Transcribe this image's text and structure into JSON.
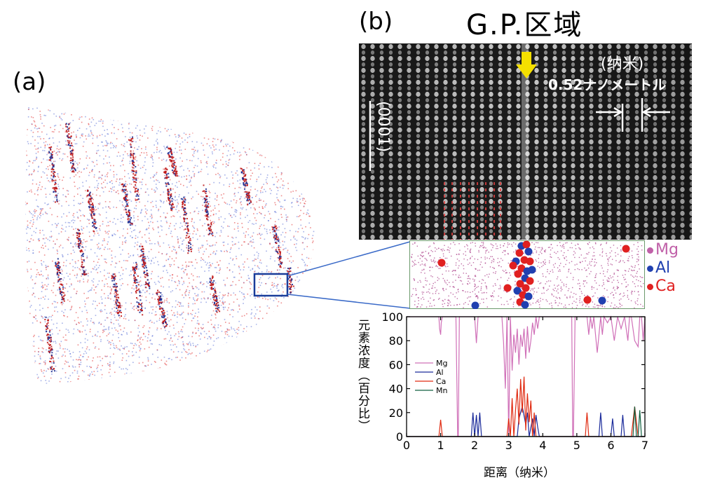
{
  "panel_a": {
    "label": "(a)"
  },
  "panel_b": {
    "label": "(b)",
    "tem": {
      "title": "G.P.区域",
      "unit_label": "(纳米)",
      "spacing_label": "0.52ナノメートル",
      "direction_label": "(0001)"
    },
    "atom_map_legend": [
      {
        "name": "Mg",
        "color": "#c060a8"
      },
      {
        "name": "Al",
        "color": "#2040b0"
      },
      {
        "name": "Ca",
        "color": "#e02020"
      }
    ]
  },
  "chart_data": {
    "type": "line",
    "xlabel": "距离（纳米）",
    "ylabel": "元素浓度（百分比）",
    "xlim": [
      0,
      7
    ],
    "ylim": [
      0,
      100
    ],
    "xticks": [
      "0",
      "1",
      "2",
      "3",
      "4",
      "5",
      "6",
      "7"
    ],
    "yticks": [
      "0",
      "20",
      "40",
      "60",
      "80",
      "100"
    ],
    "legend_position": "upper-left",
    "series": [
      {
        "name": "Mg",
        "color": "#d070b8",
        "x": [
          0.0,
          0.95,
          0.97,
          1.0,
          1.02,
          1.05,
          1.45,
          1.5,
          1.52,
          1.55,
          1.9,
          2.0,
          2.05,
          2.1,
          2.15,
          2.25,
          2.8,
          2.85,
          2.9,
          2.95,
          3.0,
          3.05,
          3.1,
          3.15,
          3.2,
          3.25,
          3.3,
          3.35,
          3.4,
          3.45,
          3.5,
          3.55,
          3.6,
          3.65,
          3.7,
          3.75,
          3.8,
          3.85,
          3.9,
          4.0,
          4.85,
          4.88,
          4.9,
          4.95,
          5.0,
          5.3,
          5.35,
          5.4,
          5.45,
          5.5,
          5.6,
          5.7,
          5.75,
          5.8,
          5.9,
          6.0,
          6.1,
          6.2,
          6.3,
          6.4,
          6.5,
          6.55,
          6.6,
          6.7,
          6.8,
          6.85,
          6.9,
          6.95,
          7.0
        ],
        "y": [
          100,
          100,
          90,
          85,
          95,
          100,
          100,
          0,
          0,
          100,
          100,
          100,
          78,
          100,
          100,
          100,
          100,
          78,
          40,
          100,
          0,
          100,
          55,
          85,
          70,
          90,
          60,
          85,
          75,
          90,
          65,
          92,
          70,
          80,
          95,
          85,
          100,
          90,
          100,
          100,
          100,
          0,
          0,
          100,
          100,
          100,
          85,
          100,
          90,
          100,
          70,
          100,
          85,
          100,
          95,
          100,
          80,
          100,
          90,
          100,
          80,
          100,
          100,
          80,
          75,
          100,
          100,
          80,
          100
        ]
      },
      {
        "name": "Al",
        "color": "#1a2a9a",
        "x": [
          0.0,
          1.9,
          1.95,
          2.0,
          2.05,
          2.1,
          2.15,
          2.2,
          3.25,
          3.3,
          3.4,
          3.5,
          3.55,
          3.6,
          3.7,
          3.75,
          3.8,
          3.85,
          3.9,
          5.6,
          5.65,
          5.7,
          5.75,
          5.8,
          6.0,
          6.05,
          6.1,
          6.3,
          6.35,
          6.4,
          7.0
        ],
        "y": [
          0,
          0,
          20,
          0,
          18,
          0,
          20,
          0,
          0,
          15,
          25,
          10,
          20,
          0,
          15,
          0,
          18,
          8,
          0,
          0,
          0,
          20,
          0,
          0,
          0,
          15,
          0,
          0,
          18,
          0,
          0
        ]
      },
      {
        "name": "Ca",
        "color": "#e02a10",
        "x": [
          0.0,
          0.95,
          1.0,
          1.05,
          2.95,
          3.0,
          3.05,
          3.1,
          3.15,
          3.2,
          3.25,
          3.3,
          3.35,
          3.4,
          3.45,
          3.5,
          3.55,
          3.6,
          3.65,
          3.7,
          3.75,
          3.8,
          3.85,
          5.25,
          5.3,
          5.35,
          5.4,
          6.6,
          6.7,
          6.8,
          7.0
        ],
        "y": [
          0,
          0,
          14,
          0,
          0,
          15,
          0,
          32,
          0,
          22,
          40,
          10,
          48,
          20,
          50,
          5,
          36,
          12,
          30,
          0,
          20,
          0,
          0,
          0,
          20,
          0,
          0,
          0,
          25,
          0,
          0
        ]
      },
      {
        "name": "Mn",
        "color": "#106040",
        "x": [
          0.0,
          6.6,
          6.65,
          6.7,
          6.75,
          6.8,
          6.85,
          6.9,
          6.95,
          7.0
        ],
        "y": [
          0,
          0,
          0,
          25,
          0,
          0,
          22,
          0,
          0,
          0
        ]
      }
    ]
  }
}
